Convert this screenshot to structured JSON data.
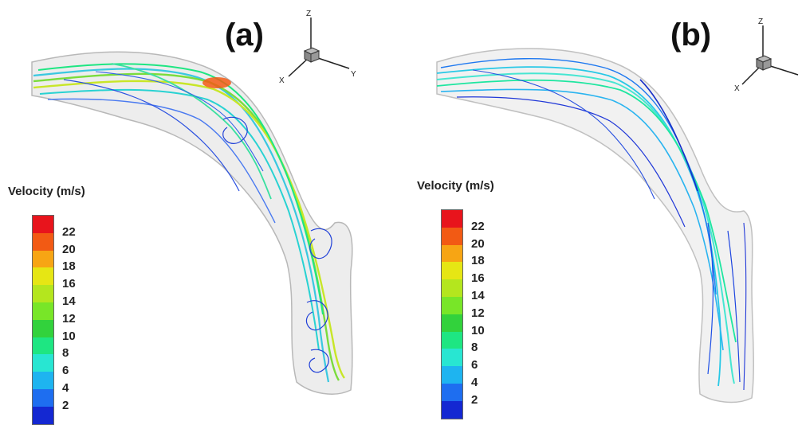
{
  "panels": [
    {
      "label": "(a)",
      "legend_title": "Velocity (m/s)",
      "ticks": [
        "22",
        "20",
        "18",
        "16",
        "14",
        "12",
        "10",
        "8",
        "6",
        "4",
        "2"
      ],
      "axes": {
        "z": "Z",
        "x": "X",
        "y": "Y"
      }
    },
    {
      "label": "(b)",
      "legend_title": "Velocity (m/s)",
      "ticks": [
        "22",
        "20",
        "18",
        "16",
        "14",
        "12",
        "10",
        "8",
        "6",
        "4",
        "2"
      ],
      "axes": {
        "z": "Z",
        "x": "X"
      }
    }
  ],
  "colormap": [
    "#e8141c",
    "#f25a14",
    "#f7a514",
    "#e6e614",
    "#b4e61e",
    "#78e628",
    "#32d23c",
    "#1ee682",
    "#28e6d2",
    "#1eb4f0",
    "#1e6ef0",
    "#1428d2"
  ]
}
